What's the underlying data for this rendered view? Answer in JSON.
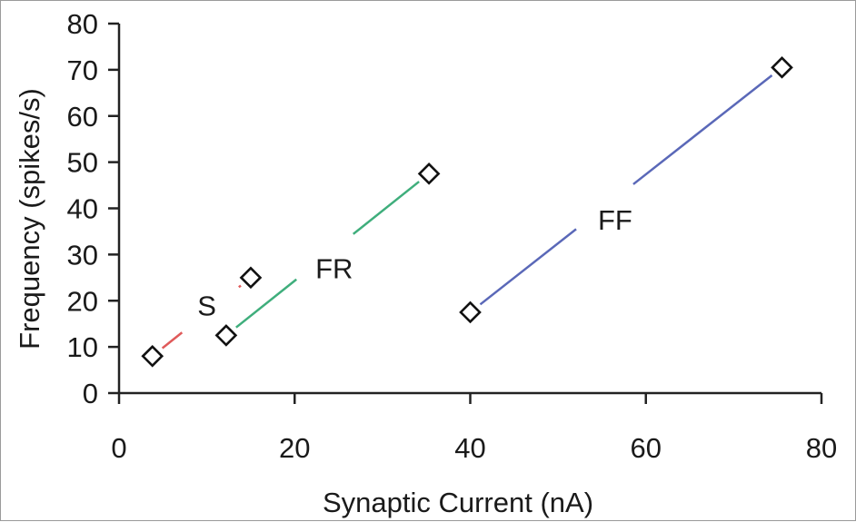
{
  "chart_data": {
    "type": "line",
    "title": "",
    "xlabel": "Synaptic Current (nA)",
    "ylabel": "Frequency (spikes/s)",
    "xlim": [
      0,
      80
    ],
    "ylim": [
      0,
      80
    ],
    "x_ticks": [
      "0",
      "20",
      "40",
      "60",
      "80"
    ],
    "y_ticks": [
      "0",
      "10",
      "20",
      "30",
      "40",
      "50",
      "60",
      "70",
      "80"
    ],
    "grid": false,
    "legend": "none",
    "series": [
      {
        "name": "S",
        "color": "#e05a5a",
        "points": [
          {
            "x": 3.8,
            "y": 8
          },
          {
            "x": 15,
            "y": 25
          }
        ],
        "label_at": {
          "x": 10,
          "y": 19
        }
      },
      {
        "name": "FR",
        "color": "#3fae7c",
        "points": [
          {
            "x": 12.2,
            "y": 12.5
          },
          {
            "x": 35.3,
            "y": 47.5
          }
        ],
        "label_at": {
          "x": 24.5,
          "y": 27
        }
      },
      {
        "name": "FF",
        "color": "#5a68b8",
        "points": [
          {
            "x": 40,
            "y": 17.5
          },
          {
            "x": 75.5,
            "y": 70.5
          }
        ],
        "label_at": {
          "x": 56.5,
          "y": 37.5
        }
      }
    ],
    "marker": "open-diamond"
  }
}
